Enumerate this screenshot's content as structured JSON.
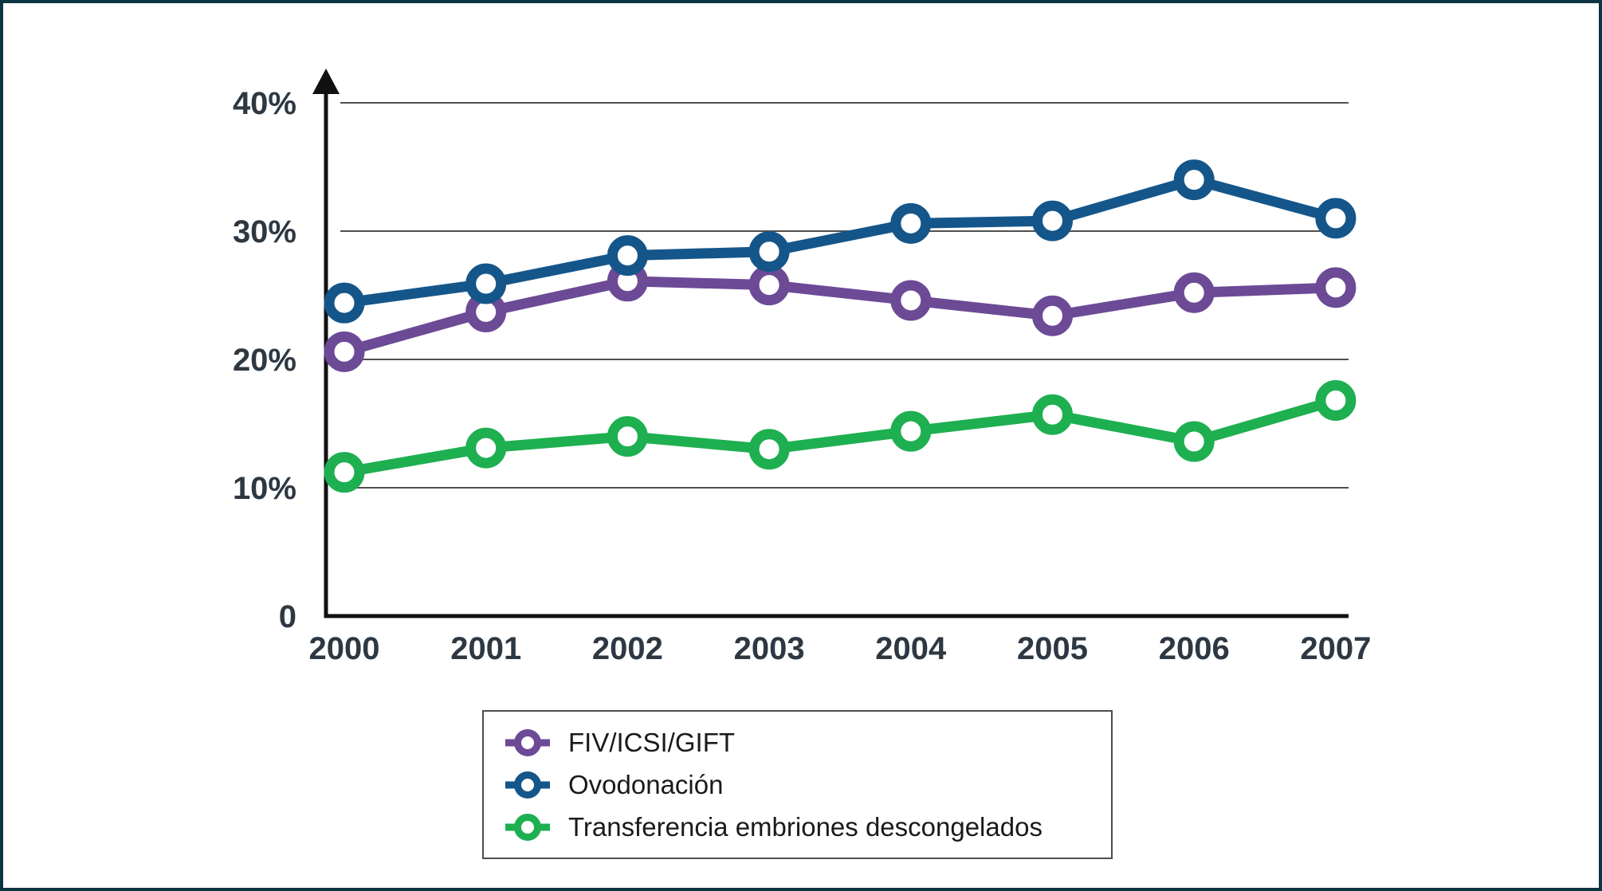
{
  "figure": {
    "border_color": "#0C3541",
    "background_color": "#ffffff"
  },
  "chart_data": {
    "type": "line",
    "title": "",
    "xlabel": "",
    "ylabel": "",
    "categories": [
      "2000",
      "2001",
      "2002",
      "2003",
      "2004",
      "2005",
      "2006",
      "2007"
    ],
    "series": [
      {
        "name": "FIV/ICSI/GIFT",
        "color": "#6C4A96",
        "values": [
          20.6,
          23.7,
          26.1,
          25.8,
          24.6,
          23.4,
          25.2,
          25.6
        ]
      },
      {
        "name": "Ovodonación",
        "color": "#15568A",
        "values": [
          24.4,
          25.9,
          28.1,
          28.4,
          30.6,
          30.8,
          34.0,
          31.0
        ]
      },
      {
        "name": "Transferencia embriones descongelados",
        "color": "#1EAF50",
        "values": [
          11.2,
          13.1,
          14.0,
          13.0,
          14.4,
          15.7,
          13.6,
          16.8
        ]
      }
    ],
    "ylim": [
      0,
      40
    ],
    "yticks": [
      {
        "value": 0,
        "label": "0"
      },
      {
        "value": 10,
        "label": "10%"
      },
      {
        "value": 20,
        "label": "20%"
      },
      {
        "value": 30,
        "label": "30%"
      },
      {
        "value": 40,
        "label": "40%"
      }
    ],
    "grid": "horizontal",
    "gridline_color": "#4f4f4f",
    "axis_color": "#111111",
    "tick_label_color": "#2D3842",
    "marker": "open-circle",
    "legend_position": "bottom",
    "legend_border_color": "#4d4d4d",
    "legend_text_color": "#1A1A1A"
  }
}
